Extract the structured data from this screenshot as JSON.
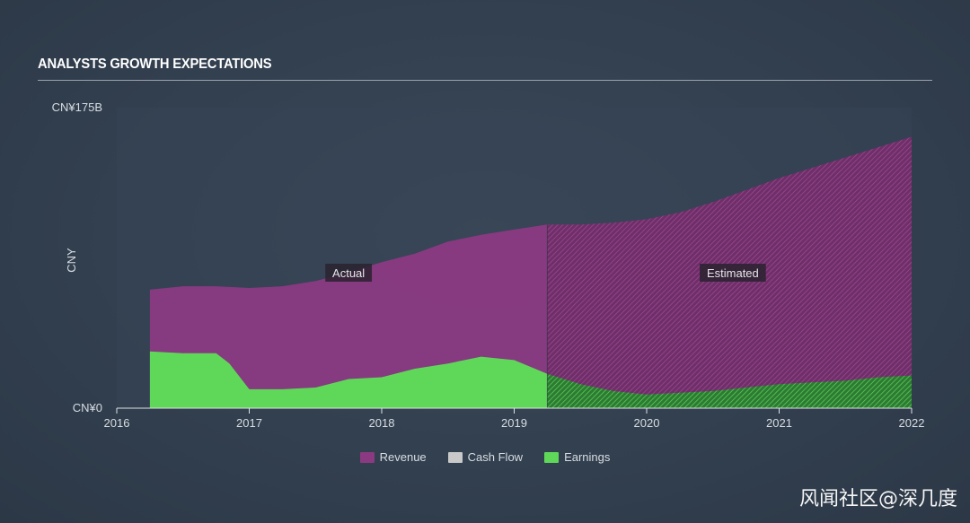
{
  "title": "ANALYSTS GROWTH EXPECTATIONS",
  "watermark": "风闻社区@深几度",
  "colors": {
    "revenue": "#8b3a82",
    "cash_flow": "#c9c9c9",
    "earnings": "#5fd85a",
    "background": "#323f4f"
  },
  "chart_data": {
    "type": "area",
    "ylabel": "CNY",
    "y_tick_labels": [
      "CN¥175B",
      "CN¥0"
    ],
    "ylim": [
      0,
      175
    ],
    "xlim": [
      2016,
      2022
    ],
    "x_tick_labels": [
      "2016",
      "2017",
      "2018",
      "2019",
      "2020",
      "2021",
      "2022"
    ],
    "x_ticks": [
      2016,
      2017,
      2018,
      2019,
      2020,
      2021,
      2022
    ],
    "split_x": 2019.25,
    "regions": {
      "actual": "Actual",
      "estimated": "Estimated"
    },
    "grid": false,
    "legend_position": "bottom-center",
    "series": [
      {
        "name": "Revenue",
        "color_key": "revenue",
        "x": [
          2016.25,
          2016.5,
          2016.75,
          2017.0,
          2017.25,
          2017.5,
          2017.75,
          2018.0,
          2018.25,
          2018.5,
          2018.75,
          2019.0,
          2019.25,
          2019.5,
          2019.75,
          2020.0,
          2020.25,
          2020.5,
          2020.75,
          2021.0,
          2021.25,
          2021.5,
          2021.75,
          2022.0,
          2022.1
        ],
        "values": [
          69,
          71,
          71,
          70,
          71,
          74,
          79,
          85,
          90,
          97,
          101,
          104,
          107,
          107,
          108,
          110,
          114,
          120,
          127,
          134,
          140,
          146,
          152,
          158,
          151
        ]
      },
      {
        "name": "Earnings",
        "color_key": "earnings",
        "x": [
          2016.25,
          2016.5,
          2016.75,
          2016.85,
          2017.0,
          2017.25,
          2017.5,
          2017.75,
          2018.0,
          2018.25,
          2018.5,
          2018.75,
          2019.0,
          2019.25,
          2019.5,
          2019.75,
          2020.0,
          2020.25,
          2020.5,
          2020.75,
          2021.0,
          2021.25,
          2021.5,
          2021.75,
          2022.0,
          2022.1
        ],
        "values": [
          33,
          32,
          32,
          26,
          11,
          11,
          12,
          17,
          18,
          23,
          26,
          30,
          28,
          20,
          14,
          10,
          8,
          9,
          10,
          12,
          14,
          15,
          16,
          18,
          19,
          20
        ]
      }
    ],
    "legend": [
      {
        "label": "Revenue",
        "color_key": "revenue"
      },
      {
        "label": "Cash Flow",
        "color_key": "cash_flow"
      },
      {
        "label": "Earnings",
        "color_key": "earnings"
      }
    ]
  }
}
